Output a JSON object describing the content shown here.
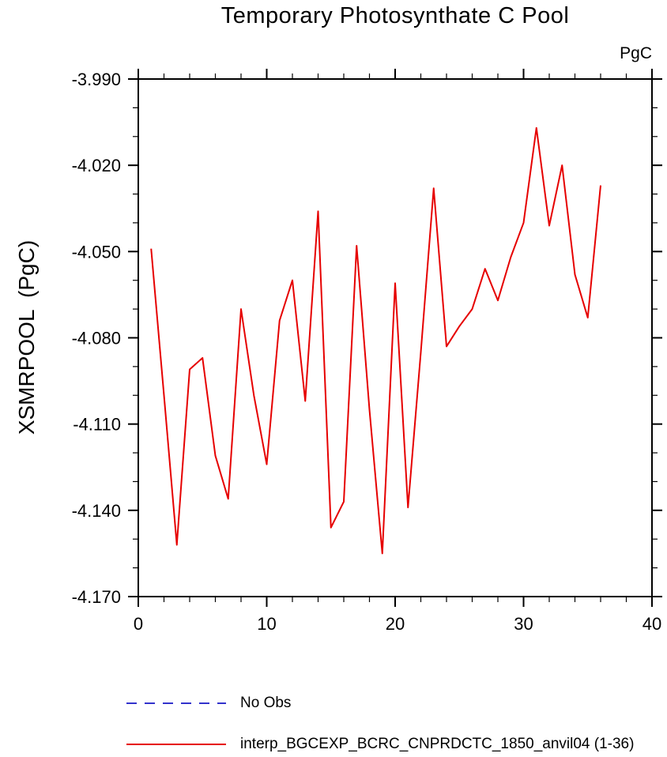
{
  "chart_data": {
    "type": "line",
    "title": "Temporary Photosynthate C Pool",
    "ylabel": "XSMRPOOL  (PgC)",
    "units_label": "PgC",
    "xlabel": "",
    "xlim": [
      0,
      40
    ],
    "ylim": [
      -4.17,
      -3.99
    ],
    "x_major_ticks": [
      0,
      10,
      20,
      30,
      40
    ],
    "x_minor_step": 2,
    "y_major_ticks": [
      -3.99,
      -4.02,
      -4.05,
      -4.08,
      -4.11,
      -4.14,
      -4.17
    ],
    "y_minor_step": 0.01,
    "grid": false,
    "frame_color": "#000000",
    "series": [
      {
        "name": "interp_BGCEXP_BCRC_CNPRDCTC_1850_anvil04 (1-36)",
        "color": "#e60000",
        "style": "solid",
        "x": [
          1,
          2,
          3,
          4,
          5,
          6,
          7,
          8,
          9,
          10,
          11,
          12,
          13,
          14,
          15,
          16,
          17,
          18,
          19,
          20,
          21,
          22,
          23,
          24,
          25,
          26,
          27,
          28,
          29,
          30,
          31,
          32,
          33,
          34,
          35,
          36
        ],
        "values": [
          -4.049,
          -4.1,
          -4.152,
          -4.091,
          -4.087,
          -4.121,
          -4.136,
          -4.07,
          -4.1,
          -4.124,
          -4.074,
          -4.06,
          -4.102,
          -4.036,
          -4.146,
          -4.137,
          -4.048,
          -4.105,
          -4.155,
          -4.061,
          -4.139,
          -4.085,
          -4.028,
          -4.083,
          -4.076,
          -4.07,
          -4.056,
          -4.067,
          -4.052,
          -4.04,
          -4.007,
          -4.041,
          -4.02,
          -4.058,
          -4.073,
          -4.027
        ]
      }
    ],
    "legend": {
      "position": "bottom-left",
      "entries": [
        {
          "label": "No Obs",
          "color": "#3333cc",
          "dash": true
        },
        {
          "label": "interp_BGCEXP_BCRC_CNPRDCTC_1850_anvil04 (1-36)",
          "color": "#e60000",
          "dash": false
        }
      ]
    }
  }
}
